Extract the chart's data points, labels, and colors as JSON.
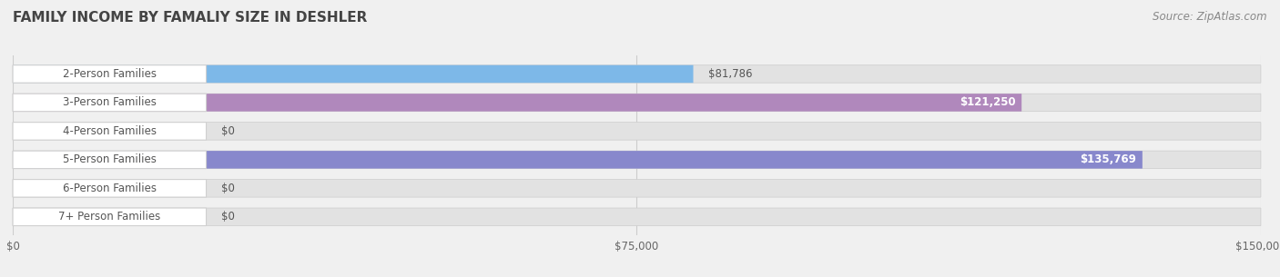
{
  "title": "FAMILY INCOME BY FAMALIY SIZE IN DESHLER",
  "source": "Source: ZipAtlas.com",
  "categories": [
    "2-Person Families",
    "3-Person Families",
    "4-Person Families",
    "5-Person Families",
    "6-Person Families",
    "7+ Person Families"
  ],
  "values": [
    81786,
    121250,
    0,
    135769,
    0,
    0
  ],
  "bar_colors": [
    "#7db8e8",
    "#b088bc",
    "#6ecac8",
    "#8888cc",
    "#f4a0b4",
    "#f5c898"
  ],
  "value_labels": [
    "$81,786",
    "$121,250",
    "$0",
    "$135,769",
    "$0",
    "$0"
  ],
  "value_inside": [
    false,
    true,
    false,
    true,
    false,
    false
  ],
  "xlim": [
    0,
    150000
  ],
  "xticklabels": [
    "$0",
    "$75,000",
    "$150,000"
  ],
  "xtick_vals": [
    0,
    75000,
    150000
  ],
  "bg_color": "#f0f0f0",
  "bar_bg_color": "#e2e2e2",
  "title_fontsize": 11,
  "source_fontsize": 8.5,
  "label_fontsize": 8.5,
  "value_fontsize": 8.5
}
